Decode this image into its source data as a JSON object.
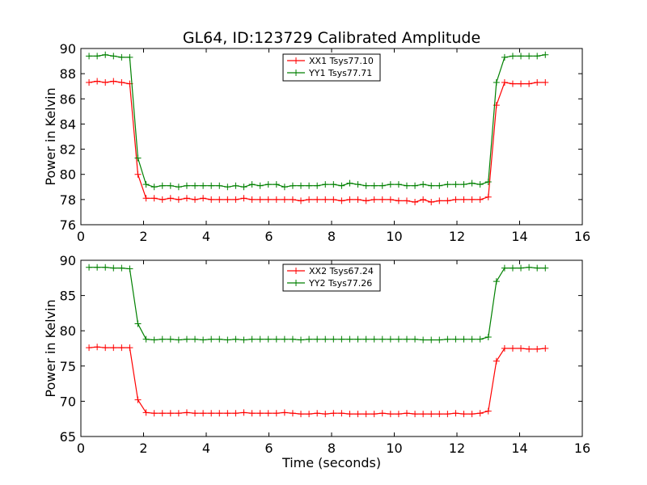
{
  "title": "GL64, ID:123729 Calibrated Amplitude",
  "chart_data": [
    {
      "type": "line",
      "xlabel": "",
      "ylabel": "Power in Kelvin",
      "xlim": [
        0,
        16
      ],
      "ylim": [
        76,
        90
      ],
      "xticks": [
        0,
        2,
        4,
        6,
        8,
        10,
        12,
        14,
        16
      ],
      "yticks": [
        76,
        78,
        80,
        82,
        84,
        86,
        88,
        90
      ],
      "grid": false,
      "legend": "top-center",
      "x": [
        0.26,
        0.52,
        0.78,
        1.04,
        1.3,
        1.56,
        1.82,
        2.08,
        2.34,
        2.6,
        2.86,
        3.12,
        3.38,
        3.64,
        3.9,
        4.16,
        4.42,
        4.68,
        4.94,
        5.2,
        5.46,
        5.72,
        5.98,
        6.24,
        6.5,
        6.76,
        7.02,
        7.28,
        7.54,
        7.8,
        8.06,
        8.32,
        8.58,
        8.84,
        9.1,
        9.36,
        9.62,
        9.88,
        10.14,
        10.4,
        10.66,
        10.92,
        11.18,
        11.44,
        11.7,
        11.96,
        12.22,
        12.48,
        12.74,
        13.0,
        13.26,
        13.52,
        13.78,
        14.04,
        14.3,
        14.56,
        14.82
      ],
      "series": [
        {
          "name": "XX1 Tsys77.10",
          "color": "#ff0000",
          "values": [
            87.3,
            87.4,
            87.3,
            87.4,
            87.3,
            87.2,
            80.0,
            78.1,
            78.1,
            78.0,
            78.1,
            78.0,
            78.1,
            78.0,
            78.1,
            78.0,
            78.0,
            78.0,
            78.0,
            78.1,
            78.0,
            78.0,
            78.0,
            78.0,
            78.0,
            78.0,
            77.9,
            78.0,
            78.0,
            78.0,
            78.0,
            77.9,
            78.0,
            78.0,
            77.9,
            78.0,
            78.0,
            78.0,
            77.9,
            77.9,
            77.8,
            78.0,
            77.8,
            77.9,
            77.9,
            78.0,
            78.0,
            78.0,
            78.0,
            78.2,
            85.5,
            87.3,
            87.2,
            87.2,
            87.2,
            87.3,
            87.3
          ]
        },
        {
          "name": "YY1 Tsys77.71",
          "color": "#008000",
          "values": [
            89.4,
            89.4,
            89.5,
            89.4,
            89.3,
            89.3,
            81.3,
            79.2,
            79.0,
            79.1,
            79.1,
            79.0,
            79.1,
            79.1,
            79.1,
            79.1,
            79.1,
            79.0,
            79.1,
            79.0,
            79.2,
            79.1,
            79.2,
            79.2,
            79.0,
            79.1,
            79.1,
            79.1,
            79.1,
            79.2,
            79.2,
            79.1,
            79.3,
            79.2,
            79.1,
            79.1,
            79.1,
            79.2,
            79.2,
            79.1,
            79.1,
            79.2,
            79.1,
            79.1,
            79.2,
            79.2,
            79.2,
            79.3,
            79.2,
            79.4,
            87.3,
            89.3,
            89.4,
            89.4,
            89.4,
            89.4,
            89.5
          ]
        }
      ]
    },
    {
      "type": "line",
      "xlabel": "Time (seconds)",
      "ylabel": "Power in Kelvin",
      "xlim": [
        0,
        16
      ],
      "ylim": [
        65,
        90
      ],
      "xticks": [
        0,
        2,
        4,
        6,
        8,
        10,
        12,
        14,
        16
      ],
      "yticks": [
        65,
        70,
        75,
        80,
        85,
        90
      ],
      "grid": false,
      "legend": "top-center",
      "x": [
        0.26,
        0.52,
        0.78,
        1.04,
        1.3,
        1.56,
        1.82,
        2.08,
        2.34,
        2.6,
        2.86,
        3.12,
        3.38,
        3.64,
        3.9,
        4.16,
        4.42,
        4.68,
        4.94,
        5.2,
        5.46,
        5.72,
        5.98,
        6.24,
        6.5,
        6.76,
        7.02,
        7.28,
        7.54,
        7.8,
        8.06,
        8.32,
        8.58,
        8.84,
        9.1,
        9.36,
        9.62,
        9.88,
        10.14,
        10.4,
        10.66,
        10.92,
        11.18,
        11.44,
        11.7,
        11.96,
        12.22,
        12.48,
        12.74,
        13.0,
        13.26,
        13.52,
        13.78,
        14.04,
        14.3,
        14.56,
        14.82
      ],
      "series": [
        {
          "name": "XX2 Tsys67.24",
          "color": "#ff0000",
          "values": [
            77.6,
            77.7,
            77.6,
            77.6,
            77.6,
            77.6,
            70.2,
            68.4,
            68.3,
            68.3,
            68.3,
            68.3,
            68.4,
            68.3,
            68.3,
            68.3,
            68.3,
            68.3,
            68.3,
            68.4,
            68.3,
            68.3,
            68.3,
            68.3,
            68.4,
            68.3,
            68.2,
            68.2,
            68.3,
            68.2,
            68.3,
            68.3,
            68.2,
            68.2,
            68.2,
            68.2,
            68.3,
            68.2,
            68.2,
            68.3,
            68.2,
            68.2,
            68.2,
            68.2,
            68.2,
            68.3,
            68.2,
            68.2,
            68.3,
            68.6,
            75.7,
            77.5,
            77.5,
            77.5,
            77.4,
            77.4,
            77.5
          ]
        },
        {
          "name": "YY2 Tsys77.26",
          "color": "#008000",
          "values": [
            89.0,
            89.0,
            89.0,
            88.9,
            88.9,
            88.8,
            81.0,
            78.8,
            78.7,
            78.8,
            78.8,
            78.7,
            78.8,
            78.8,
            78.7,
            78.8,
            78.8,
            78.7,
            78.8,
            78.7,
            78.8,
            78.8,
            78.8,
            78.8,
            78.8,
            78.8,
            78.7,
            78.8,
            78.8,
            78.8,
            78.8,
            78.8,
            78.8,
            78.8,
            78.8,
            78.8,
            78.8,
            78.8,
            78.8,
            78.8,
            78.8,
            78.7,
            78.7,
            78.7,
            78.8,
            78.8,
            78.8,
            78.8,
            78.8,
            79.1,
            87.0,
            88.9,
            88.9,
            88.9,
            89.0,
            88.9,
            88.9
          ]
        }
      ]
    }
  ]
}
